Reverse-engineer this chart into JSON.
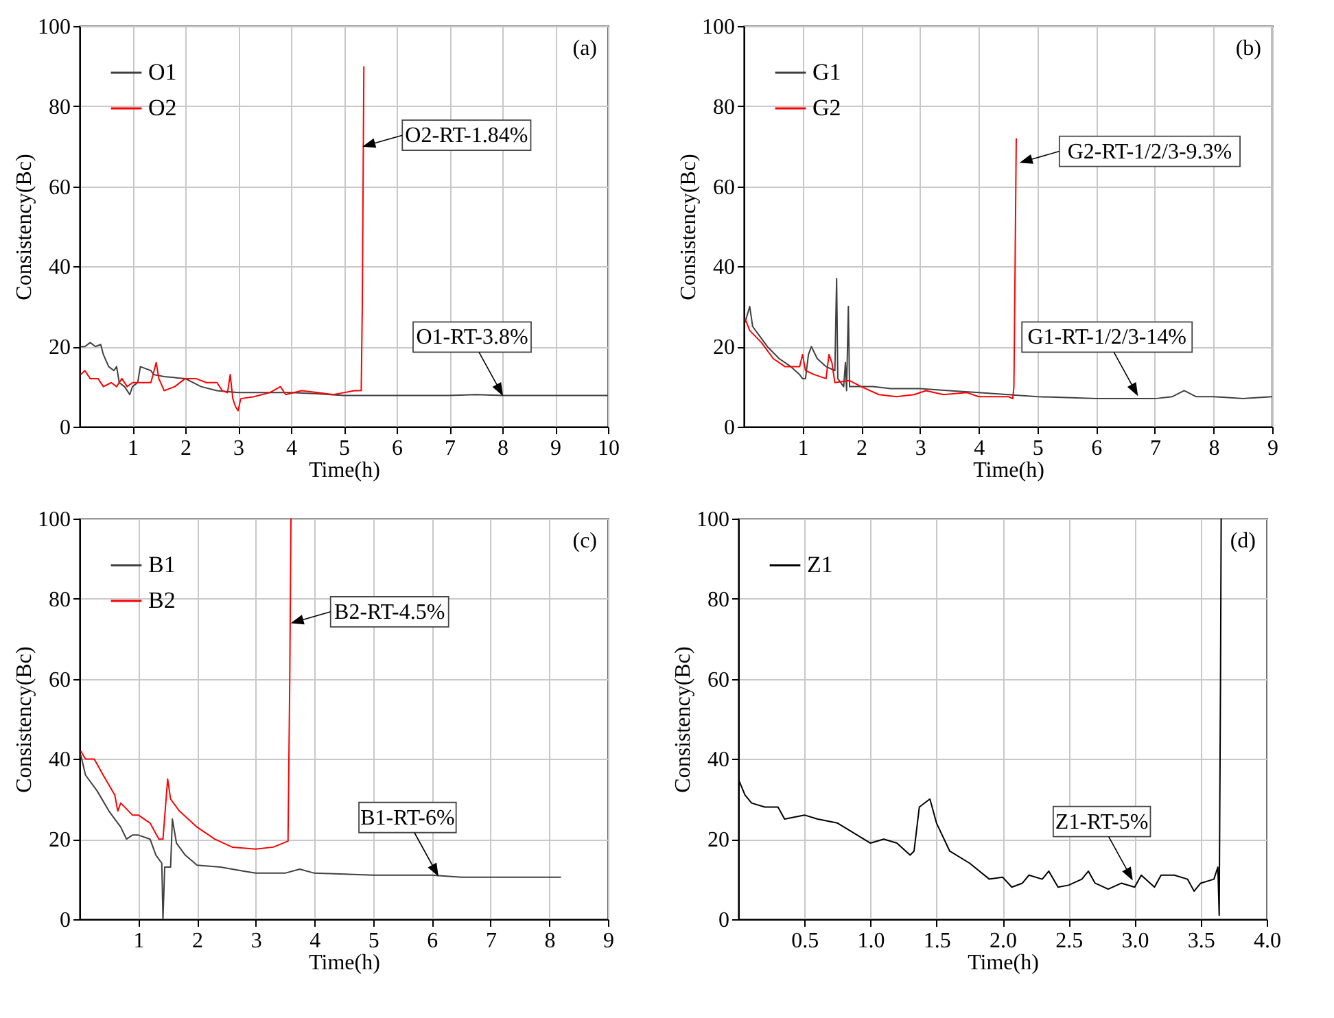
{
  "chart_data": [
    {
      "type": "line",
      "xlabel": "Time(h)",
      "ylabel": "Consistency(Bc)",
      "xlim": [
        0,
        10
      ],
      "ylim": [
        0,
        100
      ],
      "xticks": [
        1,
        2,
        3,
        4,
        5,
        6,
        7,
        8,
        9,
        10
      ],
      "yticks": [
        0,
        20,
        40,
        60,
        80,
        100
      ],
      "grid": true,
      "legend": "top left",
      "annotations": [
        "(a)",
        {
          "text": "O2-RT-1.84%",
          "x": 5.38,
          "y": 70
        },
        {
          "text": "O1-RT-3.8%",
          "x": 8,
          "y": 8
        }
      ],
      "series": [
        {
          "name": "O1",
          "color": "#404040",
          "x": [
            0.02,
            0.1,
            0.2,
            0.3,
            0.4,
            0.45,
            0.55,
            0.65,
            0.7,
            0.75,
            0.85,
            0.95,
            1.0,
            1.1,
            1.15,
            1.25,
            1.35,
            1.4,
            1.6,
            2.0,
            2.3,
            2.6,
            3.0,
            3.5,
            4.0,
            4.5,
            5.0,
            5.5,
            6,
            7,
            7.5,
            8,
            9,
            10
          ],
          "values": [
            20,
            20,
            21,
            20,
            20.5,
            18,
            15,
            14,
            15,
            11,
            10,
            8,
            10,
            11,
            15,
            14.5,
            14,
            13,
            12.5,
            12,
            10,
            9,
            8.5,
            8.5,
            8.5,
            8.2,
            7.8,
            7.8,
            7.8,
            7.8,
            8,
            7.8,
            7.8,
            7.8
          ]
        },
        {
          "name": "O2",
          "color": "#ff0000",
          "x": [
            0.02,
            0.1,
            0.2,
            0.35,
            0.45,
            0.6,
            0.7,
            0.8,
            0.9,
            1.0,
            1.2,
            1.35,
            1.45,
            1.5,
            1.6,
            1.8,
            2.0,
            2.2,
            2.4,
            2.6,
            2.7,
            2.8,
            2.85,
            2.9,
            2.95,
            3.0,
            3.05,
            3.3,
            3.6,
            3.8,
            3.9,
            4.2,
            4.5,
            4.8,
            5.0,
            5.2,
            5.33,
            5.35,
            5.37,
            5.38
          ],
          "values": [
            13,
            14,
            12,
            12,
            10,
            11,
            10,
            12,
            10,
            11,
            11,
            11,
            16,
            12,
            9,
            10,
            12,
            12,
            11,
            11,
            9,
            8.5,
            13,
            7,
            5,
            4,
            7,
            7.5,
            8.5,
            10,
            8,
            9,
            8.5,
            8,
            8.5,
            9,
            9,
            30,
            70,
            90
          ]
        }
      ]
    },
    {
      "type": "line",
      "xlabel": "Time(h)",
      "ylabel": "Consistency(Bc)",
      "xlim": [
        0,
        9
      ],
      "ylim": [
        0,
        100
      ],
      "xticks": [
        1,
        2,
        3,
        4,
        5,
        6,
        7,
        8,
        9
      ],
      "yticks": [
        0,
        20,
        40,
        60,
        80,
        100
      ],
      "grid": true,
      "legend": "top left",
      "annotations": [
        "(b)",
        {
          "text": "G2-RT-1/2/3-9.3%",
          "x": 4.72,
          "y": 66
        },
        {
          "text": "G1-RT-1/2/3-14%",
          "x": 6.7,
          "y": 8
        }
      ],
      "series": [
        {
          "name": "G1",
          "color": "#404040",
          "x": [
            0.02,
            0.1,
            0.15,
            0.25,
            0.4,
            0.6,
            0.8,
            0.95,
            1.0,
            1.05,
            1.1,
            1.15,
            1.25,
            1.4,
            1.55,
            1.58,
            1.6,
            1.7,
            1.73,
            1.75,
            1.78,
            1.8,
            2.0,
            2.2,
            2.5,
            3.0,
            3.5,
            4.0,
            4.5,
            5.0,
            6.0,
            7.0,
            7.3,
            7.5,
            7.7,
            8.0,
            8.5,
            9.0
          ],
          "values": [
            26,
            30,
            25,
            23,
            20,
            17,
            15,
            13,
            12,
            12,
            18,
            20,
            17,
            15,
            14,
            37,
            12,
            10,
            16,
            9,
            30,
            10,
            10,
            10,
            9.5,
            9.5,
            9,
            8.5,
            8,
            7.5,
            7,
            7,
            7.5,
            9,
            7.5,
            7.5,
            7,
            7.5
          ]
        },
        {
          "name": "G2",
          "color": "#ff0000",
          "x": [
            0.02,
            0.1,
            0.3,
            0.5,
            0.7,
            0.95,
            1.0,
            1.05,
            1.2,
            1.4,
            1.45,
            1.5,
            1.55,
            1.8,
            2.0,
            2.3,
            2.6,
            2.9,
            3.1,
            3.4,
            3.8,
            4.0,
            4.5,
            4.58,
            4.6,
            4.62,
            4.64
          ],
          "values": [
            27,
            24,
            21,
            17,
            15,
            15,
            18,
            14,
            13,
            12,
            18,
            16,
            11,
            11.5,
            10,
            8,
            7.5,
            8,
            9,
            8,
            8.5,
            7.5,
            7.5,
            7,
            10,
            40,
            72
          ]
        }
      ]
    },
    {
      "type": "line",
      "xlabel": "Time(h)",
      "ylabel": "Consistency(Bc)",
      "xlim": [
        0,
        9
      ],
      "ylim": [
        0,
        100
      ],
      "xticks": [
        1,
        2,
        3,
        4,
        5,
        6,
        7,
        8,
        9
      ],
      "yticks": [
        0,
        20,
        40,
        60,
        80,
        100
      ],
      "grid": true,
      "legend": "top left",
      "annotations": [
        "(c)",
        {
          "text": "B2-RT-4.5%",
          "x": 3.62,
          "y": 74
        },
        {
          "text": "B1-RT-6%",
          "x": 6.1,
          "y": 11
        }
      ],
      "series": [
        {
          "name": "B1",
          "color": "#404040",
          "x": [
            0.02,
            0.1,
            0.3,
            0.5,
            0.7,
            0.8,
            0.9,
            1.0,
            1.2,
            1.3,
            1.4,
            1.42,
            1.45,
            1.55,
            1.58,
            1.65,
            1.8,
            2.0,
            2.4,
            2.8,
            3.0,
            3.5,
            3.75,
            4.0,
            5.0,
            6.0,
            6.5,
            7.0,
            8.2
          ],
          "values": [
            41,
            36,
            32,
            27,
            23,
            20,
            21,
            21,
            20,
            16,
            14,
            0,
            13,
            13,
            25,
            19,
            16,
            13.5,
            13,
            12,
            11.5,
            11.5,
            12.5,
            11.5,
            11,
            11,
            10.5,
            10.5,
            10.5
          ]
        },
        {
          "name": "B2",
          "color": "#ff0000",
          "x": [
            0.02,
            0.1,
            0.25,
            0.4,
            0.6,
            0.65,
            0.7,
            0.9,
            1.0,
            1.2,
            1.35,
            1.42,
            1.5,
            1.55,
            1.7,
            2.0,
            2.3,
            2.6,
            3.0,
            3.3,
            3.55,
            3.58,
            3.6
          ],
          "values": [
            42,
            40,
            40,
            36,
            31,
            27,
            29,
            26,
            26,
            24,
            20,
            20,
            35,
            30,
            27,
            23,
            20,
            18,
            17.5,
            18,
            19.5,
            60,
            100
          ]
        }
      ]
    },
    {
      "type": "line",
      "xlabel": "Time(h)",
      "ylabel": "Consistency(Bc)",
      "xlim": [
        0,
        4
      ],
      "ylim": [
        0,
        100
      ],
      "xticks": [
        0.5,
        {
          "value": 1,
          "label": "1.0"
        },
        1.5,
        {
          "value": 2,
          "label": "2.0"
        },
        2.5,
        {
          "value": 3,
          "label": "3.0"
        },
        3.5,
        {
          "value": 4,
          "label": "4.0"
        }
      ],
      "yticks": [
        0,
        20,
        40,
        60,
        80,
        100
      ],
      "grid": true,
      "legend": "top left",
      "annotations": [
        "(d)",
        {
          "text": "Z1-RT-5%",
          "x": 2.98,
          "y": 10
        }
      ],
      "series": [
        {
          "name": "Z1",
          "color": "#000000",
          "x": [
            0.0,
            0.05,
            0.1,
            0.2,
            0.3,
            0.35,
            0.5,
            0.6,
            0.75,
            0.9,
            1.0,
            1.1,
            1.2,
            1.3,
            1.33,
            1.37,
            1.45,
            1.5,
            1.6,
            1.75,
            1.9,
            2.0,
            2.07,
            2.15,
            2.2,
            2.3,
            2.35,
            2.42,
            2.5,
            2.6,
            2.65,
            2.7,
            2.8,
            2.9,
            3.0,
            3.05,
            3.15,
            3.2,
            3.3,
            3.4,
            3.45,
            3.5,
            3.6,
            3.63,
            3.64,
            3.65,
            3.655
          ],
          "values": [
            35,
            31,
            29,
            28,
            28,
            25,
            26,
            25,
            24,
            21,
            19,
            20,
            19,
            16,
            17,
            28,
            30,
            24,
            17,
            14,
            10,
            10.5,
            8,
            9,
            11,
            10,
            12,
            8,
            8.5,
            10,
            12,
            9,
            7.5,
            9,
            8,
            11,
            8,
            11,
            11,
            10,
            7,
            9,
            10,
            13,
            1,
            60,
            100
          ]
        }
      ]
    }
  ]
}
